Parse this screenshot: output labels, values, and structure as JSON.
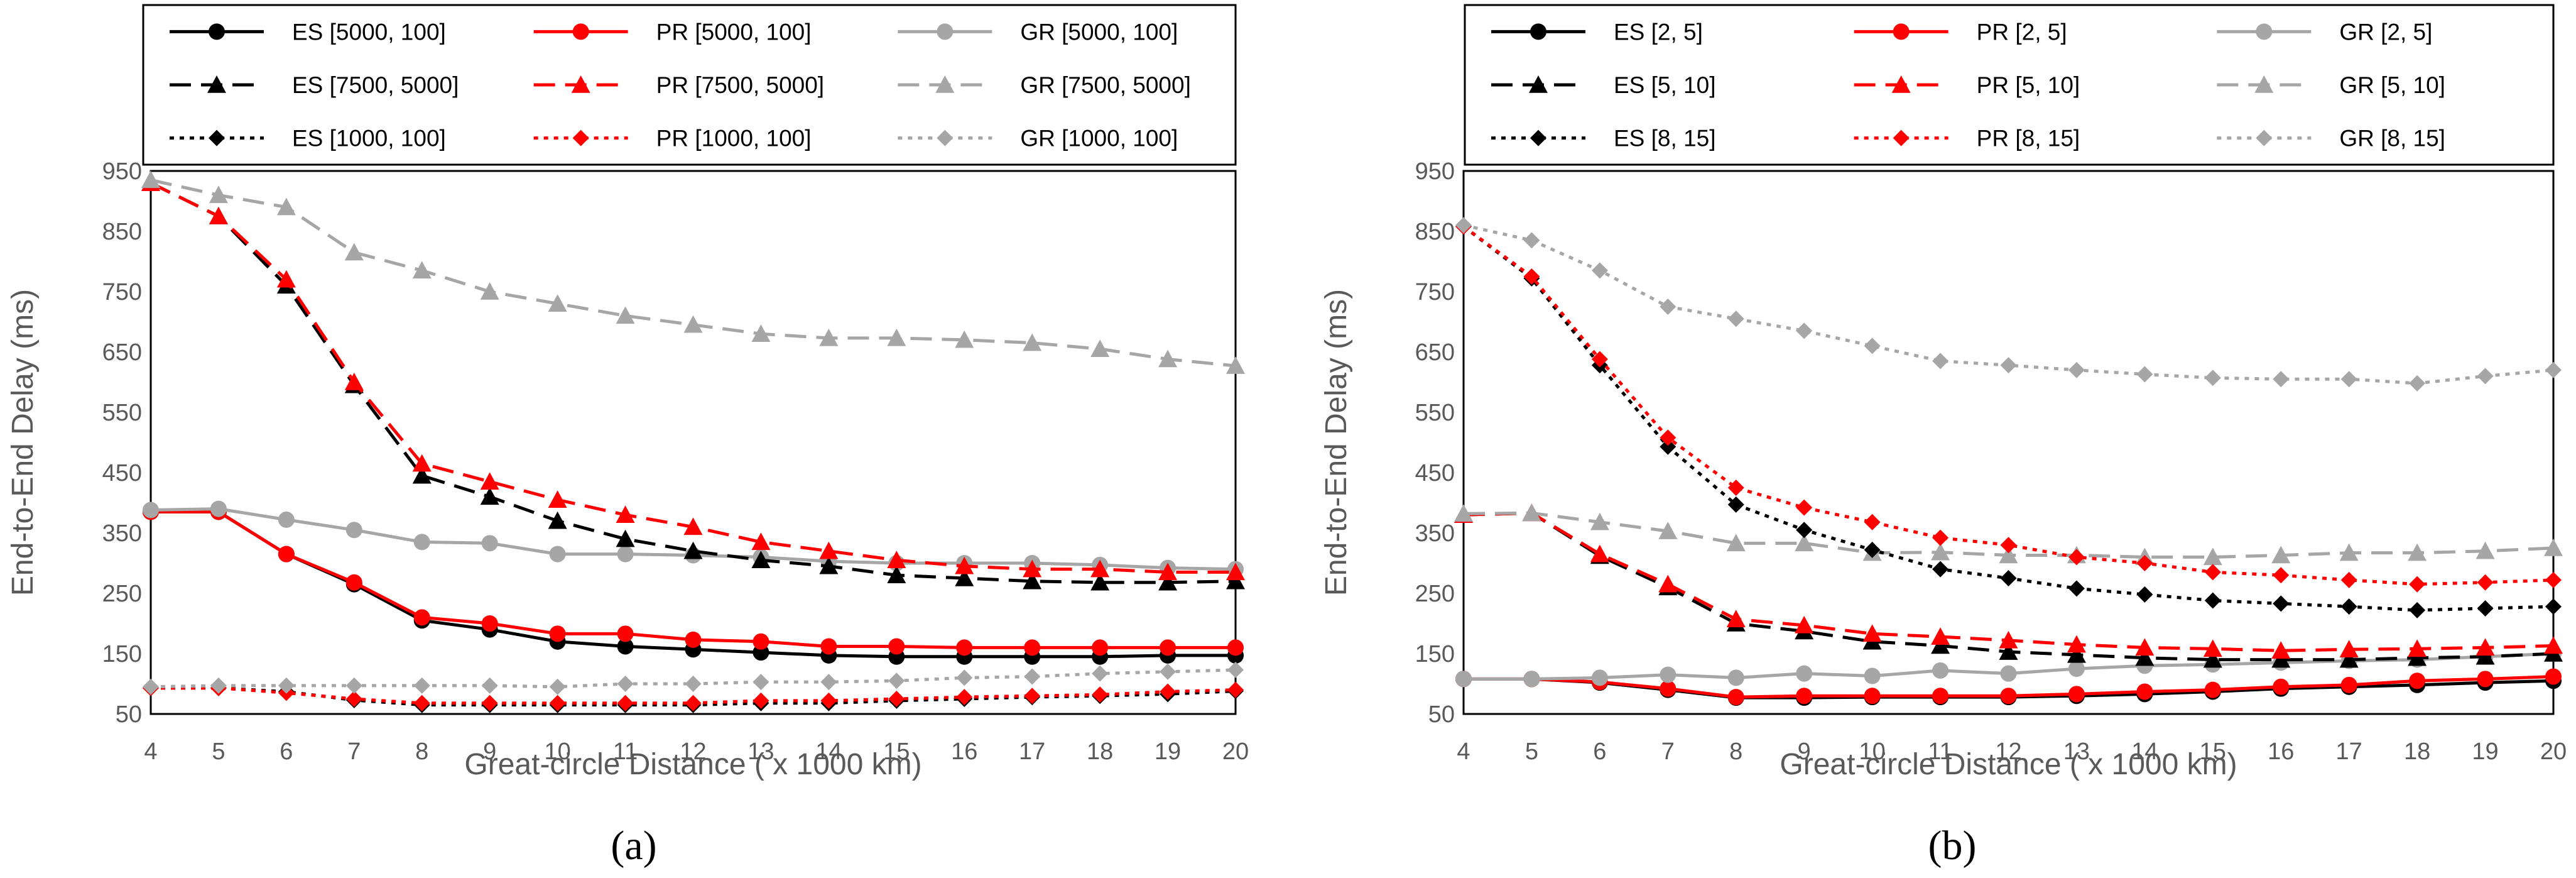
{
  "chart_data": [
    {
      "type": "line",
      "panel_label": "(a)",
      "xlabel": "Great-circle Distance ( x 1000 km)",
      "ylabel": "End-to-End Delay (ms)",
      "x": [
        4,
        5,
        6,
        7,
        8,
        9,
        10,
        11,
        12,
        13,
        14,
        15,
        16,
        17,
        18,
        19,
        20
      ],
      "xlim": [
        4,
        20
      ],
      "ylim": [
        50,
        950
      ],
      "yticks": [
        50,
        150,
        250,
        350,
        450,
        550,
        650,
        750,
        850,
        950
      ],
      "grid": false,
      "legend": "top",
      "series": [
        {
          "name": "ES [5000, 100]",
          "color": "#000000",
          "dash": "solid",
          "marker": "circle",
          "values": [
            385,
            385,
            315,
            265,
            205,
            190,
            170,
            162,
            157,
            152,
            147,
            145,
            145,
            145,
            145,
            147,
            147
          ]
        },
        {
          "name": "PR [5000, 100]",
          "color": "#ff0000",
          "dash": "solid",
          "marker": "circle",
          "values": [
            385,
            385,
            315,
            268,
            210,
            200,
            183,
            183,
            173,
            170,
            162,
            162,
            160,
            160,
            160,
            160,
            160
          ]
        },
        {
          "name": "GR [5000, 100]",
          "color": "#a6a6a6",
          "dash": "solid",
          "marker": "circle",
          "values": [
            388,
            390,
            372,
            355,
            335,
            333,
            315,
            315,
            313,
            310,
            303,
            300,
            300,
            300,
            297,
            292,
            290
          ]
        },
        {
          "name": "ES [7500, 5000]",
          "color": "#000000",
          "dash": "dashed",
          "marker": "triangle",
          "values": [
            930,
            875,
            760,
            595,
            445,
            410,
            370,
            340,
            320,
            305,
            295,
            280,
            275,
            270,
            268,
            268,
            270
          ]
        },
        {
          "name": "PR [7500, 5000]",
          "color": "#ff0000",
          "dash": "dashed",
          "marker": "triangle",
          "values": [
            930,
            875,
            770,
            600,
            465,
            435,
            405,
            380,
            360,
            335,
            320,
            305,
            295,
            290,
            290,
            285,
            285
          ]
        },
        {
          "name": "GR [7500, 5000]",
          "color": "#a6a6a6",
          "dash": "dashed",
          "marker": "triangle",
          "values": [
            935,
            910,
            890,
            815,
            785,
            750,
            730,
            710,
            695,
            680,
            673,
            673,
            670,
            665,
            655,
            638,
            627
          ]
        },
        {
          "name": "ES [1000, 100]",
          "color": "#000000",
          "dash": "dotted",
          "marker": "diamond",
          "values": [
            93,
            93,
            87,
            73,
            65,
            65,
            65,
            65,
            65,
            68,
            68,
            72,
            75,
            78,
            80,
            83,
            88
          ]
        },
        {
          "name": "PR [1000, 100]",
          "color": "#ff0000",
          "dash": "dotted",
          "marker": "diamond",
          "values": [
            93,
            93,
            85,
            75,
            68,
            68,
            68,
            68,
            68,
            72,
            72,
            75,
            78,
            80,
            82,
            87,
            90
          ]
        },
        {
          "name": "GR [1000, 100]",
          "color": "#a6a6a6",
          "dash": "dotted",
          "marker": "diamond",
          "values": [
            95,
            97,
            97,
            97,
            97,
            97,
            95,
            100,
            100,
            103,
            103,
            105,
            110,
            112,
            117,
            120,
            123
          ]
        }
      ]
    },
    {
      "type": "line",
      "panel_label": "(b)",
      "xlabel": "Great-circle Distance ( x 1000 km)",
      "ylabel": "End-to-End Delay (ms)",
      "x": [
        4,
        5,
        6,
        7,
        8,
        9,
        10,
        11,
        12,
        13,
        14,
        15,
        16,
        17,
        18,
        19,
        20
      ],
      "xlim": [
        4,
        20
      ],
      "ylim": [
        50,
        950
      ],
      "yticks": [
        50,
        150,
        250,
        350,
        450,
        550,
        650,
        750,
        850,
        950
      ],
      "grid": false,
      "legend": "top",
      "series": [
        {
          "name": "ES [2, 5]",
          "color": "#000000",
          "dash": "solid",
          "marker": "circle",
          "values": [
            108,
            108,
            102,
            90,
            77,
            77,
            78,
            78,
            78,
            80,
            83,
            87,
            92,
            95,
            98,
            102,
            105
          ]
        },
        {
          "name": "PR [2, 5]",
          "color": "#ff0000",
          "dash": "solid",
          "marker": "circle",
          "values": [
            108,
            108,
            103,
            92,
            78,
            80,
            80,
            80,
            80,
            83,
            87,
            90,
            95,
            98,
            105,
            108,
            112
          ]
        },
        {
          "name": "GR [2, 5]",
          "color": "#a6a6a6",
          "dash": "solid",
          "marker": "circle",
          "values": [
            108,
            108,
            110,
            115,
            110,
            117,
            113,
            122,
            117,
            125,
            130,
            132,
            135,
            138,
            140,
            145,
            150
          ]
        },
        {
          "name": "ES [5, 10]",
          "color": "#000000",
          "dash": "dashed",
          "marker": "triangle",
          "values": [
            380,
            383,
            312,
            260,
            200,
            187,
            170,
            163,
            153,
            148,
            143,
            140,
            140,
            140,
            143,
            145,
            150
          ]
        },
        {
          "name": "PR [5, 10]",
          "color": "#ff0000",
          "dash": "dashed",
          "marker": "triangle",
          "values": [
            380,
            383,
            315,
            265,
            207,
            197,
            183,
            178,
            172,
            165,
            160,
            158,
            155,
            157,
            158,
            160,
            163
          ]
        },
        {
          "name": "GR [5, 10]",
          "color": "#a6a6a6",
          "dash": "dashed",
          "marker": "triangle",
          "values": [
            382,
            383,
            368,
            353,
            333,
            333,
            317,
            318,
            313,
            313,
            310,
            310,
            313,
            317,
            317,
            320,
            325
          ]
        },
        {
          "name": "ES [8, 15]",
          "color": "#000000",
          "dash": "dotted",
          "marker": "diamond",
          "values": [
            858,
            772,
            628,
            493,
            397,
            355,
            322,
            290,
            275,
            258,
            248,
            238,
            233,
            228,
            222,
            225,
            228
          ]
        },
        {
          "name": "PR [8, 15]",
          "color": "#ff0000",
          "dash": "dotted",
          "marker": "diamond",
          "values": [
            858,
            775,
            638,
            508,
            425,
            392,
            368,
            342,
            330,
            310,
            300,
            285,
            280,
            272,
            265,
            268,
            272
          ]
        },
        {
          "name": "GR [8, 15]",
          "color": "#a6a6a6",
          "dash": "dotted",
          "marker": "diamond",
          "values": [
            860,
            835,
            785,
            725,
            705,
            685,
            660,
            635,
            628,
            620,
            613,
            607,
            605,
            605,
            598,
            610,
            620
          ]
        }
      ]
    }
  ]
}
